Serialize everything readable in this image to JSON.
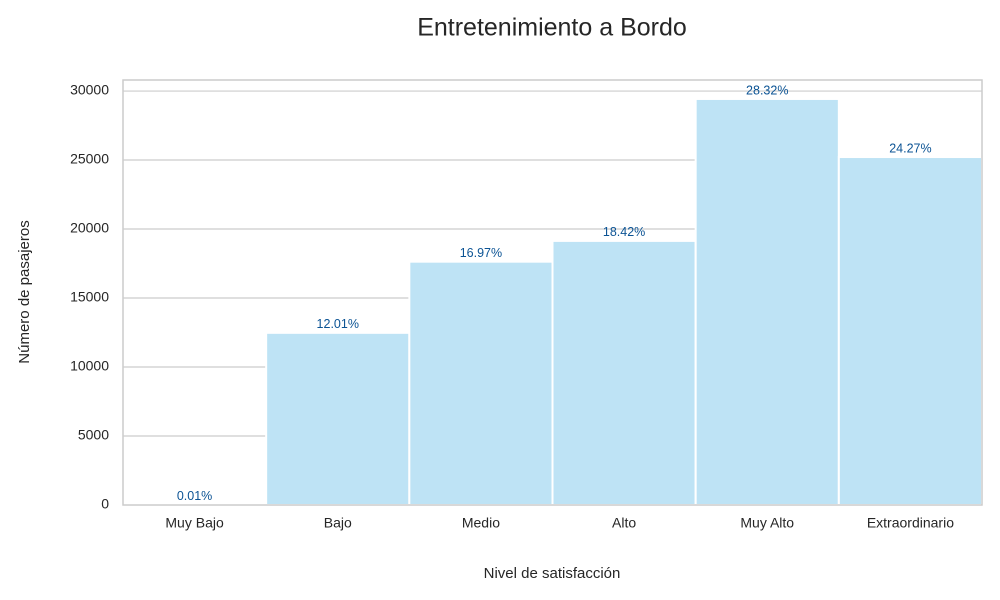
{
  "chart_data": {
    "type": "bar",
    "title": "Entretenimiento a Bordo",
    "x_label": "Nivel de satisfacción",
    "y_label": "Número de pasajeros",
    "categories": [
      "Muy Bajo",
      "Bajo",
      "Medio",
      "Alto",
      "Muy Alto",
      "Extraordinario"
    ],
    "values": [
      14,
      12478,
      17633,
      19139,
      29426,
      25217
    ],
    "annotations": [
      "0.01%",
      "12.01%",
      "16.97%",
      "18.42%",
      "28.32%",
      "24.27%"
    ],
    "color": "#bee3f5",
    "annotation_color": "#0b5394",
    "ylim": [
      0,
      30800
    ],
    "yticks": [
      0,
      5000,
      10000,
      15000,
      20000,
      25000,
      30000
    ],
    "grid": true
  }
}
